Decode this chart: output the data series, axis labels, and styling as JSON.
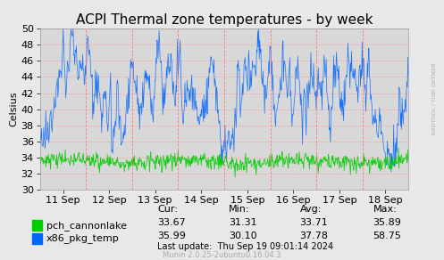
{
  "title": "ACPI Thermal zone temperatures - by week",
  "ylabel": "Celsius",
  "ylim": [
    30,
    50
  ],
  "background_color": "#e8e8e8",
  "plot_bg_color": "#d8d8d8",
  "grid_color": "#ff9999",
  "x_labels": [
    "11 Sep",
    "12 Sep",
    "13 Sep",
    "14 Sep",
    "15 Sep",
    "16 Sep",
    "17 Sep",
    "18 Sep"
  ],
  "x_tick_positions": [
    0.5,
    1.5,
    2.5,
    3.5,
    4.5,
    5.5,
    6.5,
    7.5
  ],
  "vline_color": "#ff6666",
  "series": [
    {
      "name": "pch_cannonlake",
      "color": "#00cc00",
      "cur": "33.67",
      "min": "31.31",
      "avg": "33.71",
      "max": "35.89"
    },
    {
      "name": "x86_pkg_temp",
      "color": "#0066ff",
      "cur": "35.99",
      "min": "30.10",
      "avg": "37.78",
      "max": "58.75"
    }
  ],
  "col_headers": [
    "Cur:",
    "Min:",
    "Avg:",
    "Max:"
  ],
  "last_update": "Last update:  Thu Sep 19 09:01:14 2024",
  "munin_version": "Munin 2.0.25-2ubuntu0.16.04.3",
  "rrdtool_text": "RRDTOOL / TOBI OETIKER",
  "title_fontsize": 11,
  "axis_fontsize": 8,
  "legend_fontsize": 8,
  "num_points": 700
}
